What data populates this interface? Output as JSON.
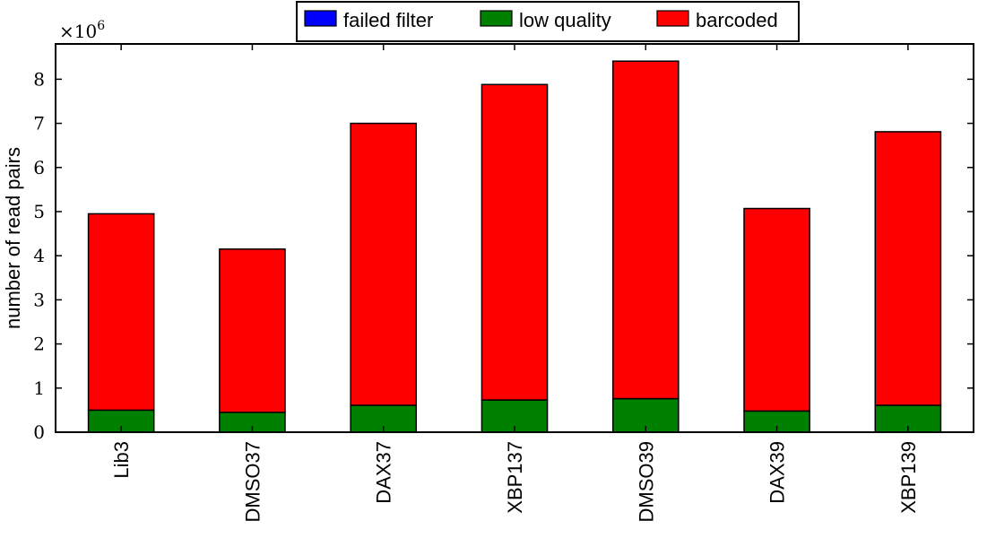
{
  "chart_data": {
    "type": "bar",
    "stacked": true,
    "categories": [
      "Lib3",
      "DMSO37",
      "DAX37",
      "XBP137",
      "DMSO39",
      "DAX39",
      "XBP139"
    ],
    "series": [
      {
        "name": "failed filter",
        "color": "#0000ff",
        "values": [
          0,
          0,
          0,
          0,
          0,
          0,
          0
        ]
      },
      {
        "name": "low quality",
        "color": "#008000",
        "values": [
          500000,
          450000,
          610000,
          730000,
          760000,
          480000,
          610000
        ]
      },
      {
        "name": "barcoded",
        "color": "#ff0000",
        "values": [
          4450000,
          3700000,
          6390000,
          7150000,
          7650000,
          4590000,
          6200000
        ]
      }
    ],
    "ylabel": "number of read pairs",
    "ylim": [
      0,
      8800000
    ],
    "yticks": [
      0,
      1,
      2,
      3,
      4,
      5,
      6,
      7,
      8
    ],
    "y_multiplier_label": "×10^6",
    "legend_position": "top-center",
    "grid": false
  }
}
